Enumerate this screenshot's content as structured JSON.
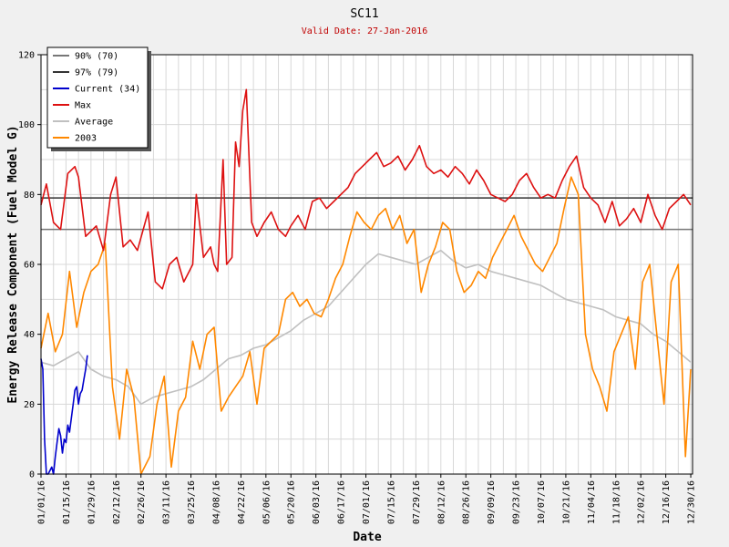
{
  "chart_data": {
    "type": "line",
    "title": "SC11",
    "subtitle": "Valid Date: 27-Jan-2016",
    "xlabel": "Date",
    "ylabel": "Energy Release Component (Fuel Model G)",
    "ylim": [
      0,
      120
    ],
    "yticks": [
      0,
      20,
      40,
      60,
      80,
      100,
      120
    ],
    "x_start": "01/01/16",
    "x_end": "12/31/16",
    "xticks": [
      "01/01/16",
      "01/15/16",
      "01/29/16",
      "02/12/16",
      "02/26/16",
      "03/11/16",
      "03/25/16",
      "04/08/16",
      "04/22/16",
      "05/06/16",
      "05/20/16",
      "06/03/16",
      "06/17/16",
      "07/01/16",
      "07/15/16",
      "07/29/16",
      "08/12/16",
      "08/26/16",
      "09/09/16",
      "09/23/16",
      "10/07/16",
      "10/21/16",
      "11/04/16",
      "11/18/16",
      "12/02/16",
      "12/16/16",
      "12/30/16"
    ],
    "grid": true,
    "legend_position": "top-left",
    "colors": {
      "p90": "#777777",
      "p97": "#333333",
      "current": "#0000cc",
      "max": "#dd1111",
      "average": "#c0c0c0",
      "y2003": "#ff8800"
    },
    "reference_lines": [
      {
        "name": "90% (70)",
        "value": 70,
        "color": "#777777"
      },
      {
        "name": "97% (79)",
        "value": 79,
        "color": "#333333"
      }
    ],
    "series": [
      {
        "name": "Current (34)",
        "color": "#0000cc",
        "x": [
          "01/01/16",
          "01/02/16",
          "01/03/16",
          "01/04/16",
          "01/05/16",
          "01/06/16",
          "01/07/16",
          "01/08/16",
          "01/09/16",
          "01/10/16",
          "01/11/16",
          "01/12/16",
          "01/13/16",
          "01/14/16",
          "01/15/16",
          "01/16/16",
          "01/17/16",
          "01/18/16",
          "01/19/16",
          "01/20/16",
          "01/21/16",
          "01/22/16",
          "01/23/16",
          "01/24/16",
          "01/25/16",
          "01/26/16",
          "01/27/16"
        ],
        "values": [
          33,
          30,
          10,
          0,
          0,
          1,
          2,
          0,
          5,
          9,
          13,
          11,
          6,
          10,
          9,
          14,
          12,
          16,
          20,
          24,
          25,
          20,
          23,
          24,
          27,
          30,
          34
        ]
      },
      {
        "name": "Max",
        "color": "#dd1111",
        "x": [
          "01/01/16",
          "01/04/16",
          "01/08/16",
          "01/12/16",
          "01/16/16",
          "01/20/16",
          "01/22/16",
          "01/26/16",
          "02/01/16",
          "02/05/16",
          "02/09/16",
          "02/12/16",
          "02/16/16",
          "02/20/16",
          "02/24/16",
          "03/01/16",
          "03/05/16",
          "03/09/16",
          "03/13/16",
          "03/17/16",
          "03/21/16",
          "03/24/16",
          "03/26/16",
          "03/28/16",
          "04/01/16",
          "04/05/16",
          "04/07/16",
          "04/09/16",
          "04/12/16",
          "04/14/16",
          "04/17/16",
          "04/19/16",
          "04/21/16",
          "04/23/16",
          "04/25/16",
          "04/28/16",
          "05/01/16",
          "05/05/16",
          "05/09/16",
          "05/13/16",
          "05/17/16",
          "05/20/16",
          "05/24/16",
          "05/28/16",
          "06/01/16",
          "06/05/16",
          "06/09/16",
          "06/13/16",
          "06/17/16",
          "06/21/16",
          "06/25/16",
          "06/29/16",
          "07/03/16",
          "07/07/16",
          "07/11/16",
          "07/15/16",
          "07/19/16",
          "07/23/16",
          "07/27/16",
          "07/31/16",
          "08/04/16",
          "08/08/16",
          "08/12/16",
          "08/16/16",
          "08/20/16",
          "08/24/16",
          "08/28/16",
          "09/01/16",
          "09/05/16",
          "09/09/16",
          "09/13/16",
          "09/17/16",
          "09/21/16",
          "09/25/16",
          "09/29/16",
          "10/03/16",
          "10/07/16",
          "10/11/16",
          "10/15/16",
          "10/19/16",
          "10/23/16",
          "10/27/16",
          "10/31/16",
          "11/04/16",
          "11/08/16",
          "11/12/16",
          "11/16/16",
          "11/20/16",
          "11/24/16",
          "11/28/16",
          "12/02/16",
          "12/06/16",
          "12/10/16",
          "12/14/16",
          "12/18/16",
          "12/22/16",
          "12/26/16",
          "12/30/16"
        ],
        "values": [
          77,
          83,
          72,
          70,
          86,
          88,
          85,
          68,
          71,
          64,
          80,
          85,
          65,
          67,
          64,
          75,
          55,
          53,
          60,
          62,
          55,
          58,
          60,
          80,
          62,
          65,
          60,
          58,
          90,
          60,
          62,
          95,
          88,
          104,
          110,
          72,
          68,
          72,
          75,
          70,
          68,
          71,
          74,
          70,
          78,
          79,
          76,
          78,
          80,
          82,
          86,
          88,
          90,
          92,
          88,
          89,
          91,
          87,
          90,
          94,
          88,
          86,
          87,
          85,
          88,
          86,
          83,
          87,
          84,
          80,
          79,
          78,
          80,
          84,
          86,
          82,
          79,
          80,
          79,
          84,
          88,
          91,
          82,
          79,
          77,
          72,
          78,
          71,
          73,
          76,
          72,
          80,
          74,
          70,
          76,
          78,
          80,
          77
        ]
      },
      {
        "name": "Average",
        "color": "#c0c0c0",
        "x": [
          "01/01/16",
          "01/08/16",
          "01/15/16",
          "01/22/16",
          "01/29/16",
          "02/05/16",
          "02/12/16",
          "02/19/16",
          "02/26/16",
          "03/04/16",
          "03/11/16",
          "03/18/16",
          "03/25/16",
          "04/01/16",
          "04/08/16",
          "04/15/16",
          "04/22/16",
          "04/29/16",
          "05/06/16",
          "05/13/16",
          "05/20/16",
          "05/27/16",
          "06/03/16",
          "06/10/16",
          "06/17/16",
          "06/24/16",
          "07/01/16",
          "07/08/16",
          "07/15/16",
          "07/22/16",
          "07/29/16",
          "08/05/16",
          "08/12/16",
          "08/19/16",
          "08/26/16",
          "09/02/16",
          "09/09/16",
          "09/16/16",
          "09/23/16",
          "09/30/16",
          "10/07/16",
          "10/14/16",
          "10/21/16",
          "10/28/16",
          "11/04/16",
          "11/11/16",
          "11/18/16",
          "11/25/16",
          "12/02/16",
          "12/09/16",
          "12/16/16",
          "12/23/16",
          "12/30/16"
        ],
        "values": [
          32,
          31,
          33,
          35,
          30,
          28,
          27,
          25,
          20,
          22,
          23,
          24,
          25,
          27,
          30,
          33,
          34,
          36,
          37,
          39,
          41,
          44,
          46,
          48,
          52,
          56,
          60,
          63,
          62,
          61,
          60,
          62,
          64,
          61,
          59,
          60,
          58,
          57,
          56,
          55,
          54,
          52,
          50,
          49,
          48,
          47,
          45,
          44,
          43,
          40,
          38,
          35,
          32
        ]
      },
      {
        "name": "2003",
        "color": "#ff8800",
        "x": [
          "01/01/16",
          "01/05/16",
          "01/09/16",
          "01/13/16",
          "01/17/16",
          "01/21/16",
          "01/25/16",
          "01/29/16",
          "02/02/16",
          "02/06/16",
          "02/10/16",
          "02/14/16",
          "02/18/16",
          "02/22/16",
          "02/26/16",
          "03/02/16",
          "03/06/16",
          "03/10/16",
          "03/14/16",
          "03/18/16",
          "03/22/16",
          "03/26/16",
          "03/30/16",
          "04/03/16",
          "04/07/16",
          "04/11/16",
          "04/15/16",
          "04/19/16",
          "04/23/16",
          "04/27/16",
          "05/01/16",
          "05/05/16",
          "05/09/16",
          "05/13/16",
          "05/17/16",
          "05/21/16",
          "05/25/16",
          "05/29/16",
          "06/02/16",
          "06/06/16",
          "06/10/16",
          "06/14/16",
          "06/18/16",
          "06/22/16",
          "06/26/16",
          "06/30/16",
          "07/04/16",
          "07/08/16",
          "07/12/16",
          "07/16/16",
          "07/20/16",
          "07/24/16",
          "07/28/16",
          "08/01/16",
          "08/05/16",
          "08/09/16",
          "08/13/16",
          "08/17/16",
          "08/21/16",
          "08/25/16",
          "08/29/16",
          "09/02/16",
          "09/06/16",
          "09/10/16",
          "09/14/16",
          "09/18/16",
          "09/22/16",
          "09/26/16",
          "09/30/16",
          "10/04/16",
          "10/08/16",
          "10/12/16",
          "10/16/16",
          "10/20/16",
          "10/24/16",
          "10/28/16",
          "11/01/16",
          "11/05/16",
          "11/09/16",
          "11/13/16",
          "11/17/16",
          "11/21/16",
          "11/25/16",
          "11/29/16",
          "12/03/16",
          "12/07/16",
          "12/11/16",
          "12/15/16",
          "12/19/16",
          "12/23/16",
          "12/27/16",
          "12/30/16"
        ],
        "values": [
          36,
          46,
          35,
          40,
          58,
          42,
          52,
          58,
          60,
          66,
          25,
          10,
          30,
          22,
          0,
          5,
          20,
          28,
          2,
          18,
          22,
          38,
          30,
          40,
          42,
          18,
          22,
          25,
          28,
          35,
          20,
          36,
          38,
          40,
          50,
          52,
          48,
          50,
          46,
          45,
          50,
          56,
          60,
          68,
          75,
          72,
          70,
          74,
          76,
          70,
          74,
          66,
          70,
          52,
          60,
          65,
          72,
          70,
          58,
          52,
          54,
          58,
          56,
          62,
          66,
          70,
          74,
          68,
          64,
          60,
          58,
          62,
          66,
          76,
          85,
          80,
          40,
          30,
          25,
          18,
          35,
          40,
          45,
          30,
          55,
          60,
          40,
          20,
          55,
          60,
          5,
          30
        ]
      }
    ]
  }
}
